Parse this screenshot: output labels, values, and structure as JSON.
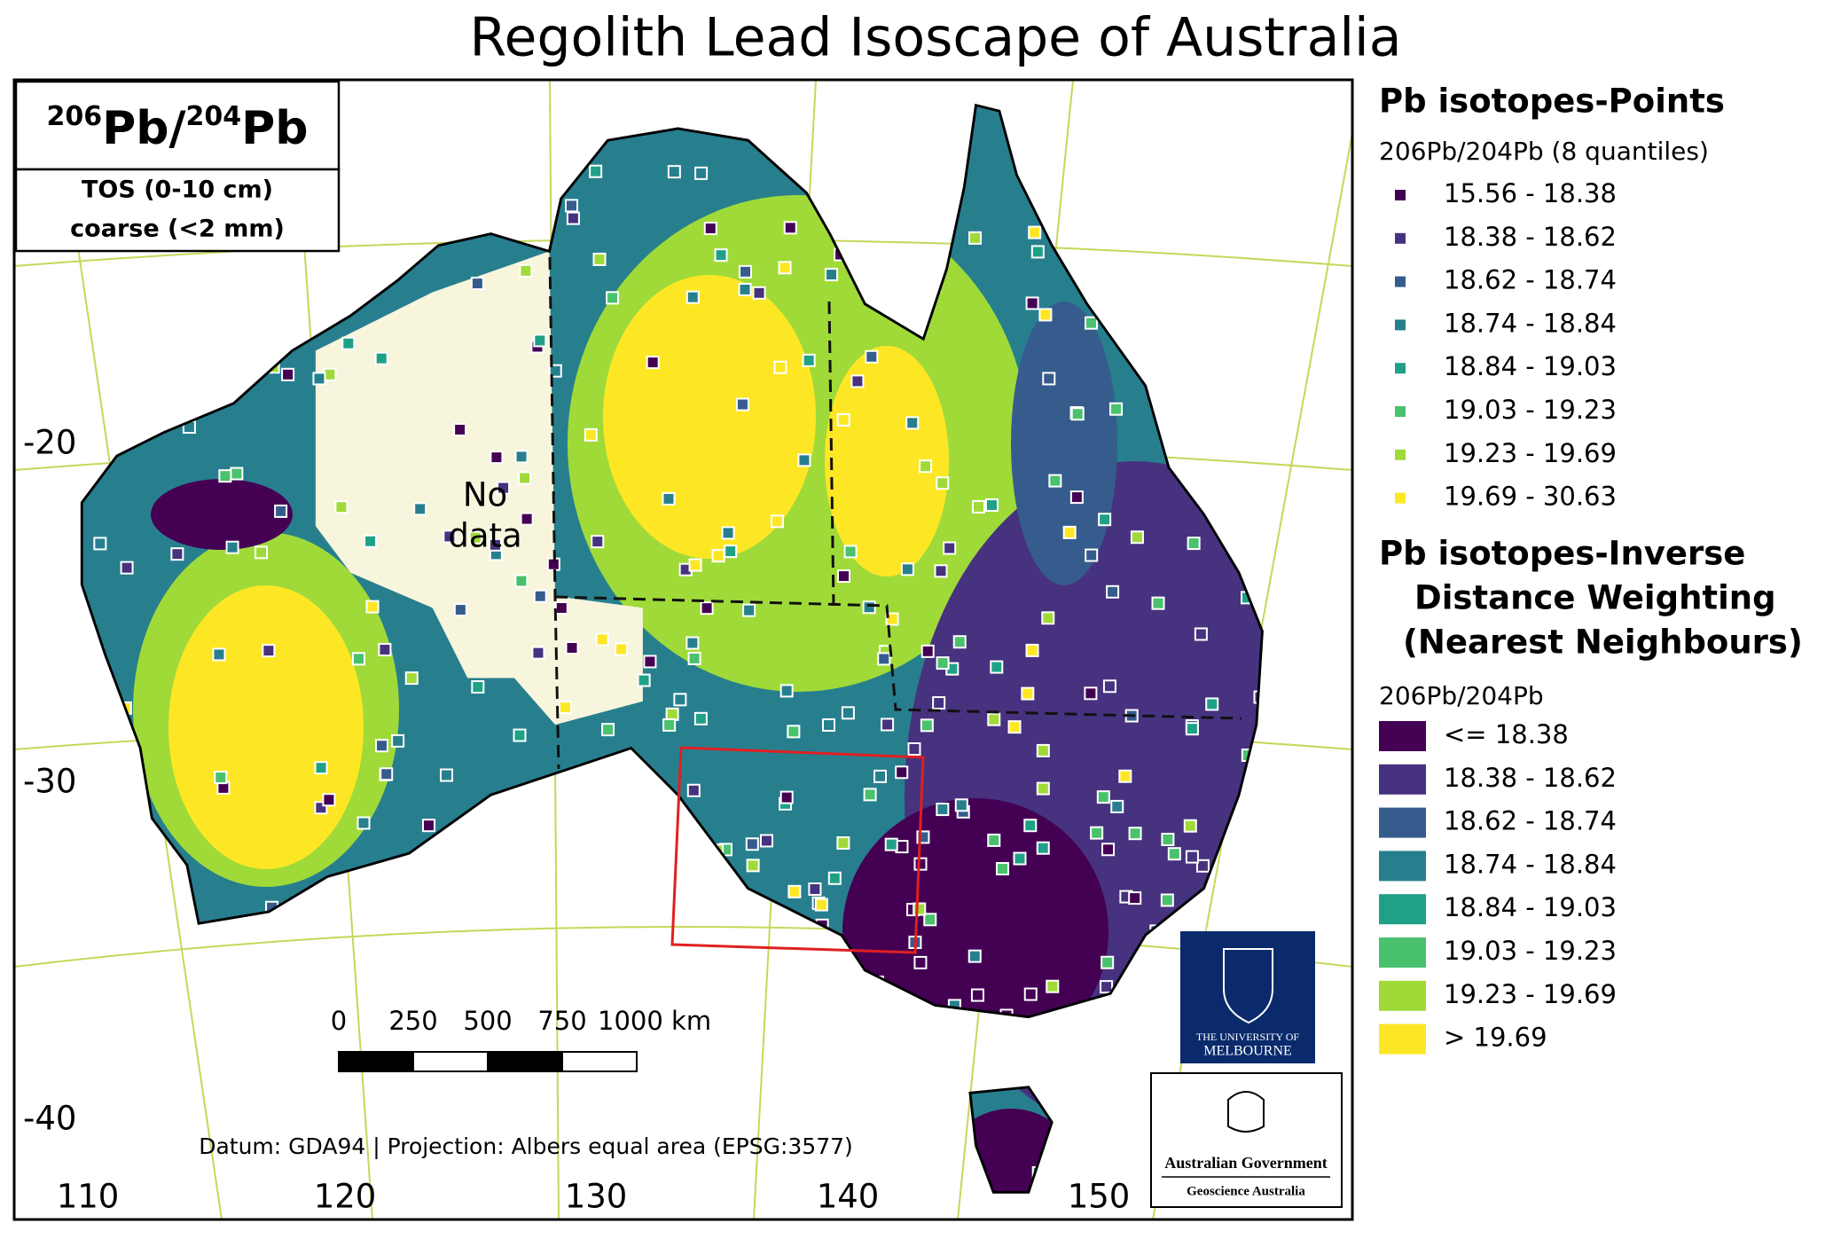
{
  "header": {
    "title": "Regolith Lead Isoscape of Australia"
  },
  "inset": {
    "ratio": {
      "num_mass": "206",
      "num_el": "Pb",
      "slash": "/",
      "den_mass": "204",
      "den_el": "Pb"
    },
    "lines": [
      "TOS (0-10 cm)",
      "coarse (<2 mm)"
    ]
  },
  "map": {
    "no_data": [
      "No",
      "data"
    ],
    "lat_labels": [
      -20,
      -30,
      -40
    ],
    "lon_labels": [
      110,
      120,
      130,
      140,
      150
    ],
    "scale_bar": {
      "ticks": [
        0,
        250,
        500,
        750,
        {
          "value": 1000,
          "label": "1000 km"
        }
      ]
    },
    "datum": "Datum: GDA94 | Projection: Albers equal area (EPSG:3577)"
  },
  "legend": {
    "points": {
      "title": "Pb isotopes-Points",
      "subtitle": "206Pb/204Pb (8 quantiles)",
      "items": [
        {
          "label": "15.56 - 18.38",
          "color": "#440154"
        },
        {
          "label": "18.38 - 18.62",
          "color": "#46327e"
        },
        {
          "label": "18.62 - 18.74",
          "color": "#365c8d"
        },
        {
          "label": "18.74 - 18.84",
          "color": "#277f8e"
        },
        {
          "label": "18.84 - 19.03",
          "color": "#1fa187"
        },
        {
          "label": "19.03 - 19.23",
          "color": "#4ac16d"
        },
        {
          "label": "19.23 - 19.69",
          "color": "#a0da39"
        },
        {
          "label": "19.69 - 30.63",
          "color": "#fde725"
        }
      ]
    },
    "idw": {
      "title_lines": [
        "Pb isotopes-Inverse",
        "Distance Weighting",
        "(Nearest Neighbours)"
      ],
      "subtitle": "206Pb/204Pb",
      "items": [
        {
          "label": "<= 18.38",
          "color": "#440154"
        },
        {
          "label": "18.38 - 18.62",
          "color": "#46327e"
        },
        {
          "label": "18.62 - 18.74",
          "color": "#365c8d"
        },
        {
          "label": "18.74 - 18.84",
          "color": "#277f8e"
        },
        {
          "label": "18.84 - 19.03",
          "color": "#1fa187"
        },
        {
          "label": "19.03 - 19.23",
          "color": "#4ac16d"
        },
        {
          "label": "19.23 - 19.69",
          "color": "#a0da39"
        },
        {
          "label": "> 19.69",
          "color": "#fde725"
        }
      ]
    }
  },
  "logos": {
    "melbourne": [
      "THE UNIVERSITY OF",
      "MELBOURNE"
    ],
    "government": [
      "Australian Government",
      "Geoscience Australia"
    ]
  }
}
